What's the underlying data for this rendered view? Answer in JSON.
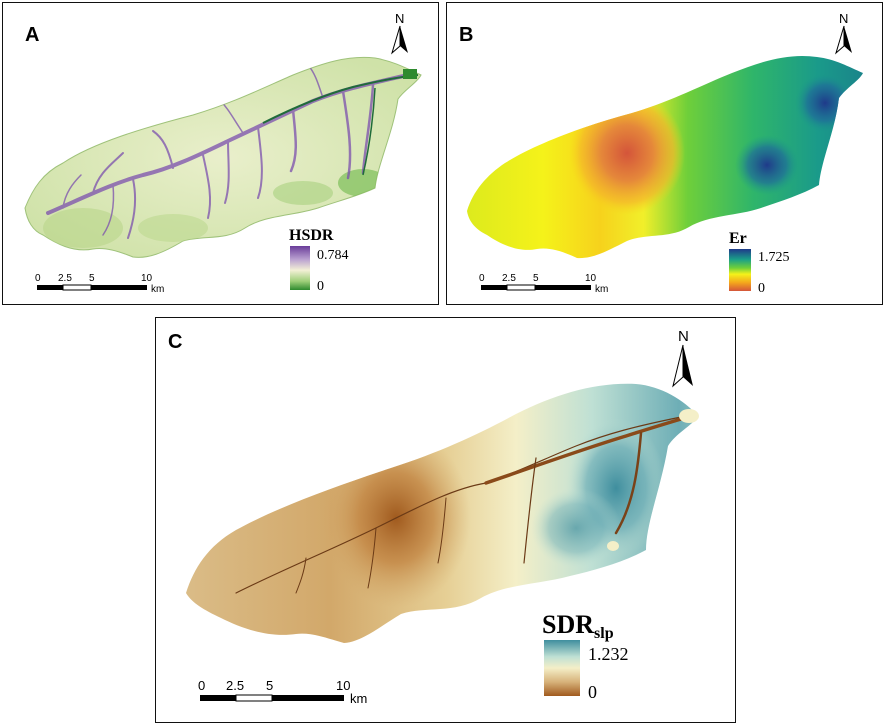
{
  "panels": {
    "a": {
      "label": "A",
      "legend": {
        "title": "HSDR",
        "max": "0.784",
        "min": "0",
        "colors": [
          "#6a3d9a",
          "#b9a0d0",
          "#f3f0d6",
          "#9fcf7a",
          "#2e8a2e"
        ]
      },
      "scale": {
        "ticks": [
          "0",
          "2.5",
          "5",
          "10"
        ],
        "unit": "km"
      },
      "north": "N"
    },
    "b": {
      "label": "B",
      "legend": {
        "title": "Er",
        "max": "1.725",
        "min": "0",
        "colors": [
          "#1f3a8a",
          "#1aa089",
          "#6fcf3a",
          "#f5f21a",
          "#f4a71c",
          "#d4553a"
        ]
      },
      "scale": {
        "ticks": [
          "0",
          "2.5",
          "5",
          "10"
        ],
        "unit": "km"
      },
      "north": "N"
    },
    "c": {
      "label": "C",
      "legend": {
        "title": "SDR",
        "title_sub": "slp",
        "max": "1.232",
        "min": "0",
        "colors": [
          "#3f8e9e",
          "#bfe0d4",
          "#f4efc8",
          "#d7b27a",
          "#a05a1e"
        ]
      },
      "scale": {
        "ticks": [
          "0",
          "2.5",
          "5",
          "10"
        ],
        "unit": "km"
      },
      "north": "N"
    }
  }
}
